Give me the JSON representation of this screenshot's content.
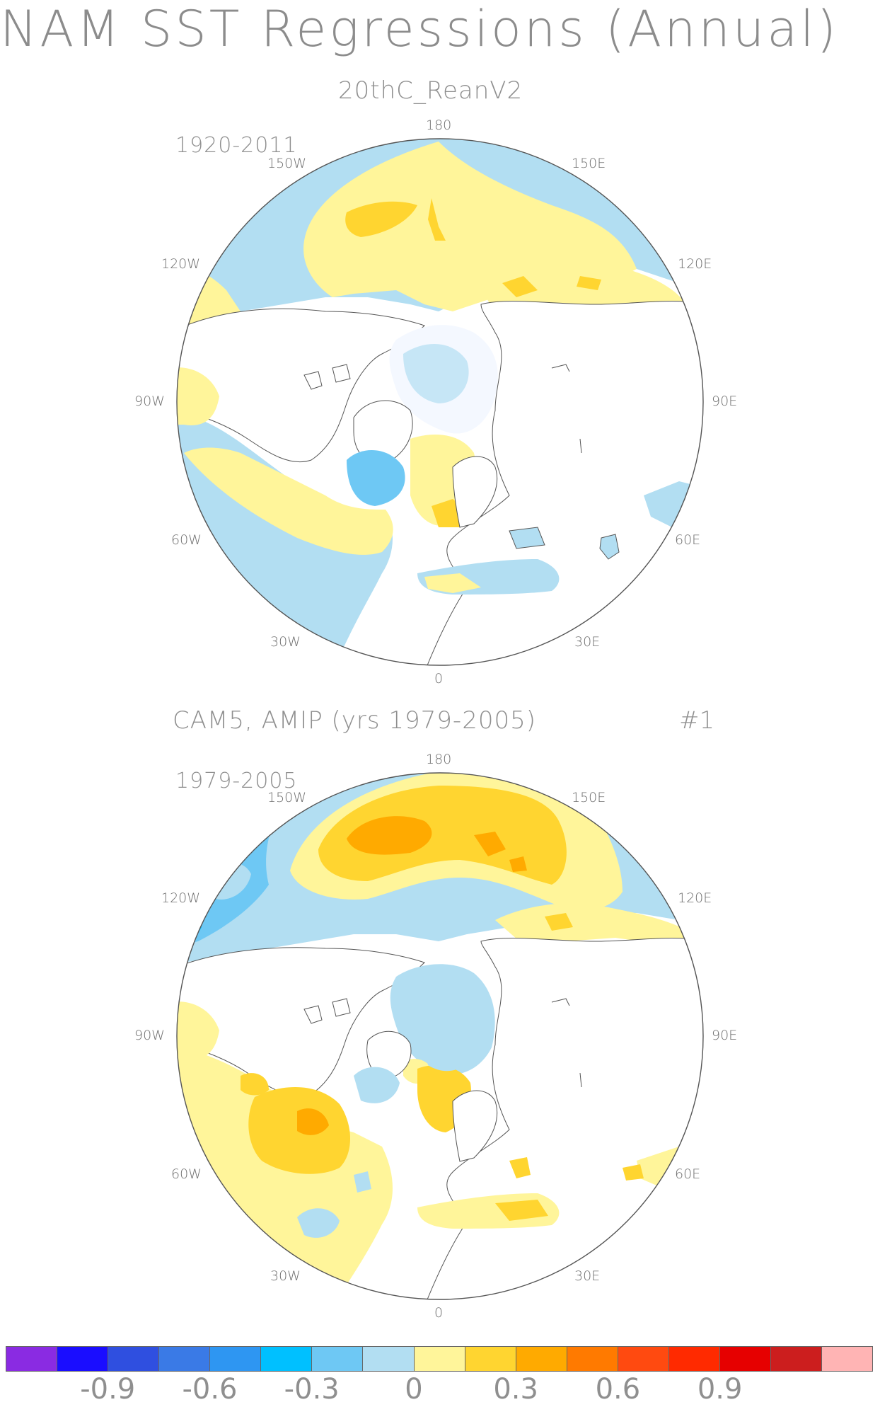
{
  "title": "NAM SST Regressions (Annual)",
  "panels": [
    {
      "subtitle": "20thC_ReanV2",
      "period": "1920-2011",
      "lon_labels": {
        "top": "180",
        "bottom": "0",
        "upper_left": "150W",
        "upper_right": "150E",
        "mid_left_high": "120W",
        "mid_right_high": "120E",
        "left": "90W",
        "right": "90E",
        "lower_left": "60W",
        "lower_right": "60E",
        "bottom_left": "30W",
        "bottom_right": "30E"
      }
    },
    {
      "subtitle": "CAM5, AMIP (yrs 1979-2005)",
      "run": "#1",
      "period": "1979-2005",
      "lon_labels": {
        "top": "180",
        "bottom": "0",
        "upper_left": "150W",
        "upper_right": "150E",
        "mid_left_high": "120W",
        "mid_right_high": "120E",
        "left": "90W",
        "right": "90E",
        "lower_left": "60W",
        "lower_right": "60E",
        "bottom_left": "30W",
        "bottom_right": "30E"
      }
    }
  ],
  "colorbar": {
    "colors": [
      "#8a2be2",
      "#1a0dff",
      "#2f4fe0",
      "#3a7ae6",
      "#2e96f2",
      "#00c0ff",
      "#6ec8f4",
      "#b2def2",
      "#fff59a",
      "#ffd530",
      "#ffaa00",
      "#ff7a00",
      "#ff4a10",
      "#ff2a00",
      "#e60000",
      "#cc1e1e",
      "#ffb4b4"
    ],
    "tick_labels": [
      "-0.9",
      "-0.6",
      "-0.3",
      "0",
      "0.3",
      "0.6",
      "0.9"
    ]
  }
}
